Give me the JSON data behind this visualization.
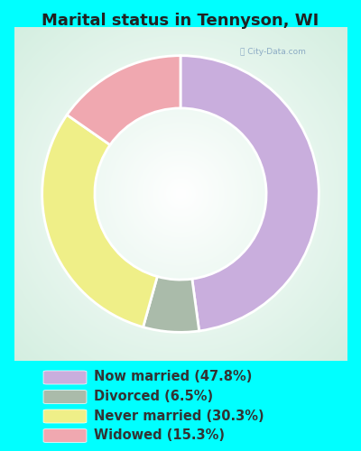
{
  "title": "Marital status in Tennyson, WI",
  "title_fontsize": 13,
  "background_color": "#00FFFF",
  "slices": [
    {
      "label": "Now married (47.8%)",
      "value": 47.8,
      "color": "#C9AEDD"
    },
    {
      "label": "Divorced (6.5%)",
      "value": 6.5,
      "color": "#AABBAA"
    },
    {
      "label": "Never married (30.3%)",
      "value": 30.3,
      "color": "#EFEF88"
    },
    {
      "label": "Widowed (15.3%)",
      "value": 15.3,
      "color": "#F0A8B0"
    }
  ],
  "legend_text_color": "#333333",
  "legend_fontsize": 10.5,
  "donut_width": 0.38,
  "start_angle": 90
}
